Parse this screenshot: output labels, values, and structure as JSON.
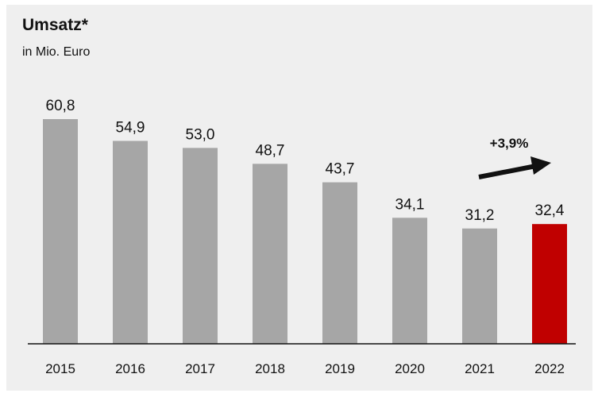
{
  "colors": {
    "panel_background": "#efefef",
    "bar_default": "#a6a6a6",
    "bar_highlight": "#c00000",
    "text": "#111111",
    "axis": "#111111"
  },
  "chart_data": {
    "type": "bar",
    "title": "Umsatz*",
    "subtitle": "in Mio. Euro",
    "categories": [
      "2015",
      "2016",
      "2017",
      "2018",
      "2019",
      "2020",
      "2021",
      "2022"
    ],
    "values": [
      60.8,
      54.9,
      53.0,
      48.7,
      43.7,
      34.1,
      31.2,
      32.4
    ],
    "value_labels": [
      "60,8",
      "54,9",
      "53,0",
      "48,7",
      "43,7",
      "34,1",
      "31,2",
      "32,4"
    ],
    "highlight_category": "2022",
    "xlabel": "",
    "ylabel": "",
    "ylim": [
      0,
      60.8
    ],
    "grid": false,
    "legend": "none",
    "annotations": [
      {
        "text": "+3,9%",
        "type": "trend-arrow",
        "from_category": "2021",
        "to_category": "2022"
      }
    ]
  }
}
